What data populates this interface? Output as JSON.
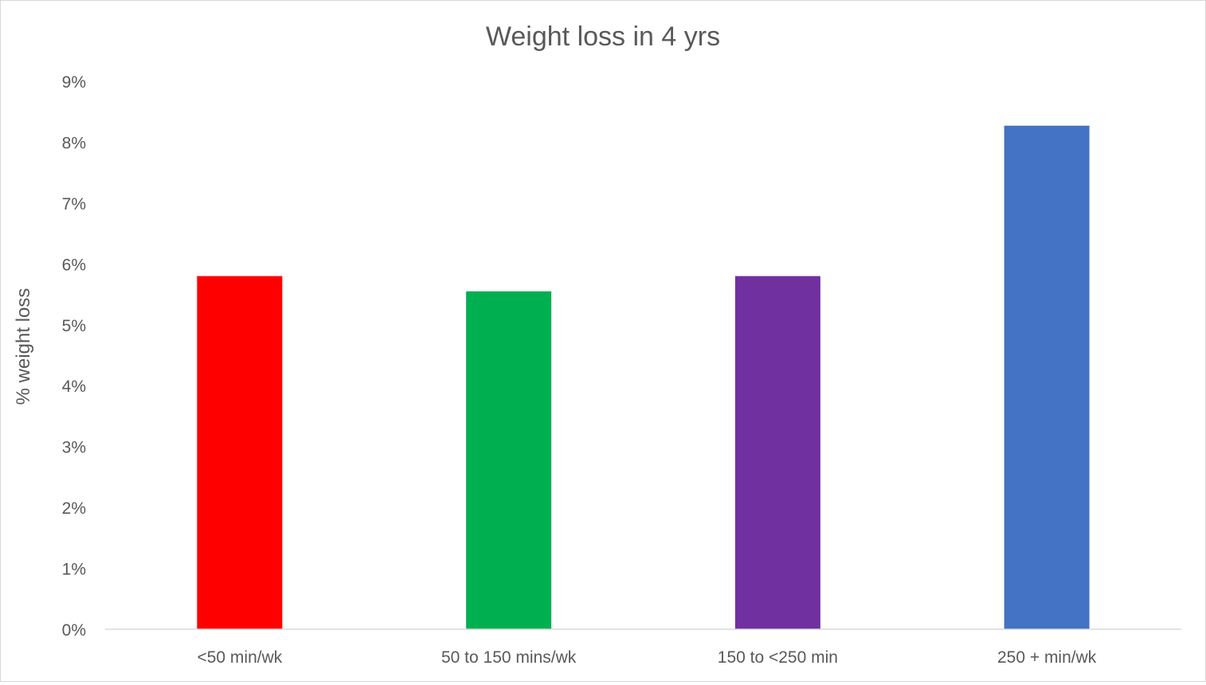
{
  "chart_data": {
    "type": "bar",
    "title": "Weight loss in 4 yrs",
    "xlabel": "",
    "ylabel": "% weight loss",
    "categories": [
      "<50 min/wk",
      "50 to 150 mins/wk",
      "150 to <250 min",
      "250 + min/wk"
    ],
    "values": [
      5.8,
      5.55,
      5.8,
      8.27
    ],
    "value_unit": "%",
    "ylim": [
      0,
      9
    ],
    "yticks": [
      0,
      1,
      2,
      3,
      4,
      5,
      6,
      7,
      8,
      9
    ],
    "ytick_labels": [
      "0%",
      "1%",
      "2%",
      "3%",
      "4%",
      "5%",
      "6%",
      "7%",
      "8%",
      "9%"
    ],
    "colors": [
      "#ff0000",
      "#00b050",
      "#7030a0",
      "#4472c4"
    ],
    "grid": false,
    "legend": "none"
  }
}
